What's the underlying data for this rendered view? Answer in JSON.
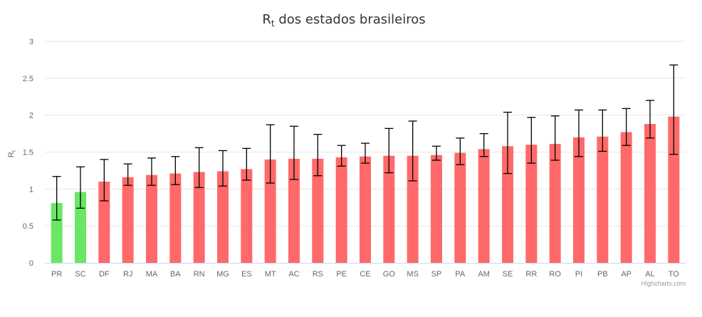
{
  "chart_data": {
    "type": "bar",
    "title_main": "R",
    "title_sub": "t",
    "title_rest": " dos estados brasileiros",
    "ylabel_main": "R",
    "ylabel_sub": "t",
    "xlabel": "",
    "ylim": [
      0,
      3
    ],
    "yticks": [
      "0",
      "0.5",
      "1",
      "1.5",
      "2",
      "2.5",
      "3"
    ],
    "yticks_values": [
      0,
      0.5,
      1,
      1.5,
      2,
      2.5,
      3
    ],
    "grid": true,
    "categories": [
      "PR",
      "SC",
      "DF",
      "RJ",
      "MA",
      "BA",
      "RN",
      "MG",
      "ES",
      "MT",
      "AC",
      "RS",
      "PE",
      "CE",
      "GO",
      "MS",
      "SP",
      "PA",
      "AM",
      "SE",
      "RR",
      "RO",
      "PI",
      "PB",
      "AP",
      "AL",
      "TO"
    ],
    "values": [
      0.81,
      0.96,
      1.1,
      1.16,
      1.19,
      1.21,
      1.23,
      1.24,
      1.27,
      1.4,
      1.41,
      1.41,
      1.43,
      1.44,
      1.45,
      1.45,
      1.46,
      1.49,
      1.54,
      1.58,
      1.6,
      1.61,
      1.7,
      1.71,
      1.77,
      1.88,
      1.98
    ],
    "error_low": [
      0.58,
      0.74,
      0.84,
      1.05,
      1.05,
      1.06,
      1.02,
      1.04,
      1.12,
      1.08,
      1.13,
      1.18,
      1.31,
      1.35,
      1.22,
      1.11,
      1.39,
      1.33,
      1.44,
      1.21,
      1.35,
      1.39,
      1.44,
      1.51,
      1.59,
      1.69,
      1.47
    ],
    "error_high": [
      1.17,
      1.3,
      1.4,
      1.34,
      1.42,
      1.44,
      1.56,
      1.52,
      1.55,
      1.87,
      1.85,
      1.74,
      1.59,
      1.62,
      1.82,
      1.92,
      1.58,
      1.69,
      1.75,
      2.04,
      1.97,
      1.99,
      2.07,
      2.07,
      2.09,
      2.2,
      2.68
    ],
    "threshold": 1,
    "colors": {
      "below": "#6ae665",
      "above": "#ff6969",
      "error": "#000000",
      "grid": "#e6e6e6",
      "axis": "#ccd6eb"
    },
    "credit": "Highcharts.com"
  }
}
